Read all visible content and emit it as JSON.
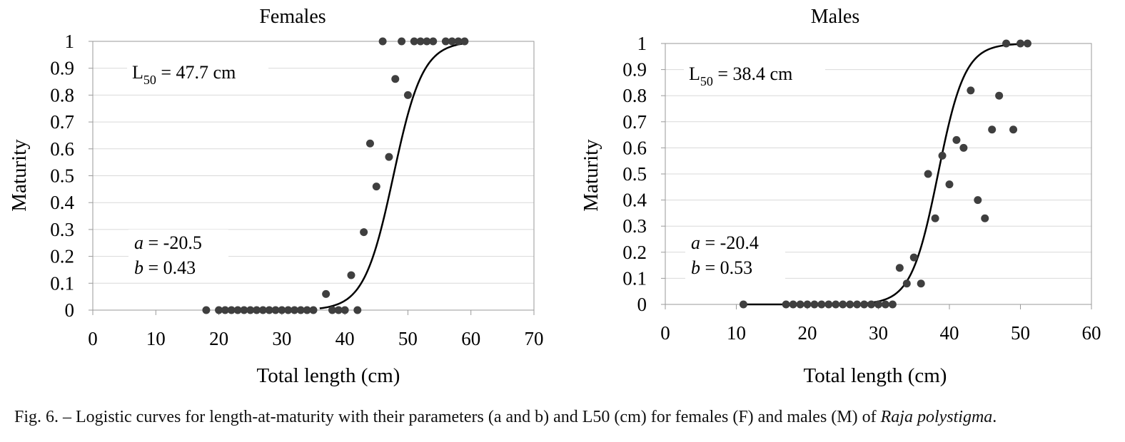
{
  "caption": {
    "text": "Fig. 6. – Logistic curves for length-at-maturity with their parameters (a and b) and L50 (cm) for females (F) and males (M) of ",
    "species": "Raja polystigma",
    "end": "."
  },
  "chart_data": [
    {
      "type": "scatter",
      "title": "Females",
      "xlabel": "Total length (cm)",
      "ylabel": "Maturity",
      "xlim": [
        0,
        70
      ],
      "ylim": [
        0,
        1
      ],
      "xticks": [
        0,
        10,
        20,
        30,
        40,
        50,
        60,
        70
      ],
      "yticks": [
        0,
        0.1,
        0.2,
        0.3,
        0.4,
        0.5,
        0.6,
        0.7,
        0.8,
        0.9,
        1
      ],
      "grid": "horizontal",
      "annotations": {
        "l50_prefix": "L",
        "l50_sub": "50",
        "l50_value": " = 47.7 cm",
        "a_var": "a",
        "a_value": " = -20.5",
        "b_var": "b",
        "b_value": " =  0.43"
      },
      "curve": {
        "type": "logistic",
        "a": -20.5,
        "b": 0.43,
        "l50": 47.7,
        "x_range": [
          36,
          59
        ]
      },
      "series": [
        {
          "points": [
            [
              18,
              0
            ],
            [
              20,
              0
            ],
            [
              21,
              0
            ],
            [
              22,
              0
            ],
            [
              23,
              0
            ],
            [
              24,
              0
            ],
            [
              25,
              0
            ],
            [
              26,
              0
            ],
            [
              27,
              0
            ],
            [
              28,
              0
            ],
            [
              29,
              0
            ],
            [
              30,
              0
            ],
            [
              31,
              0
            ],
            [
              32,
              0
            ],
            [
              33,
              0
            ],
            [
              34,
              0
            ],
            [
              35,
              0
            ],
            [
              38,
              0
            ],
            [
              39,
              0
            ],
            [
              40,
              0
            ],
            [
              42,
              0
            ],
            [
              37,
              0.06
            ],
            [
              41,
              0.13
            ],
            [
              43,
              0.29
            ],
            [
              44,
              0.62
            ],
            [
              45,
              0.46
            ],
            [
              47,
              0.57
            ],
            [
              48,
              0.86
            ],
            [
              50,
              0.8
            ],
            [
              46,
              1
            ],
            [
              49,
              1
            ],
            [
              51,
              1
            ],
            [
              52,
              1
            ],
            [
              53,
              1
            ],
            [
              54,
              1
            ],
            [
              56,
              1
            ],
            [
              57,
              1
            ],
            [
              58,
              1
            ],
            [
              59,
              1
            ]
          ]
        }
      ]
    },
    {
      "type": "scatter",
      "title": "Males",
      "xlabel": "Total length (cm)",
      "ylabel": "Maturity",
      "xlim": [
        0,
        60
      ],
      "ylim": [
        0,
        1
      ],
      "xticks": [
        0,
        10,
        20,
        30,
        40,
        50,
        60
      ],
      "yticks": [
        0,
        0.1,
        0.2,
        0.3,
        0.4,
        0.5,
        0.6,
        0.7,
        0.8,
        0.9,
        1
      ],
      "grid": "horizontal",
      "annotations": {
        "l50_prefix": "L",
        "l50_sub": "50",
        "l50_value": " = 38.4 cm",
        "a_var": "a",
        "a_value": " = -20.4",
        "b_var": "b",
        "b_value": " =  0.53"
      },
      "curve": {
        "type": "logistic",
        "a": -20.4,
        "b": 0.53,
        "l50": 38.4,
        "x_range": [
          11,
          51
        ]
      },
      "series": [
        {
          "points": [
            [
              11,
              0
            ],
            [
              17,
              0
            ],
            [
              18,
              0
            ],
            [
              19,
              0
            ],
            [
              20,
              0
            ],
            [
              21,
              0
            ],
            [
              22,
              0
            ],
            [
              23,
              0
            ],
            [
              24,
              0
            ],
            [
              25,
              0
            ],
            [
              26,
              0
            ],
            [
              27,
              0
            ],
            [
              28,
              0
            ],
            [
              29,
              0
            ],
            [
              30,
              0
            ],
            [
              31,
              0
            ],
            [
              32,
              0
            ],
            [
              33,
              0.14
            ],
            [
              34,
              0.08
            ],
            [
              35,
              0.18
            ],
            [
              36,
              0.08
            ],
            [
              37,
              0.5
            ],
            [
              38,
              0.33
            ],
            [
              39,
              0.57
            ],
            [
              40,
              0.46
            ],
            [
              41,
              0.63
            ],
            [
              42,
              0.6
            ],
            [
              43,
              0.82
            ],
            [
              44,
              0.4
            ],
            [
              45,
              0.33
            ],
            [
              46,
              0.67
            ],
            [
              47,
              0.8
            ],
            [
              49,
              0.67
            ],
            [
              48,
              1
            ],
            [
              50,
              1
            ],
            [
              51,
              1
            ]
          ]
        }
      ]
    }
  ]
}
